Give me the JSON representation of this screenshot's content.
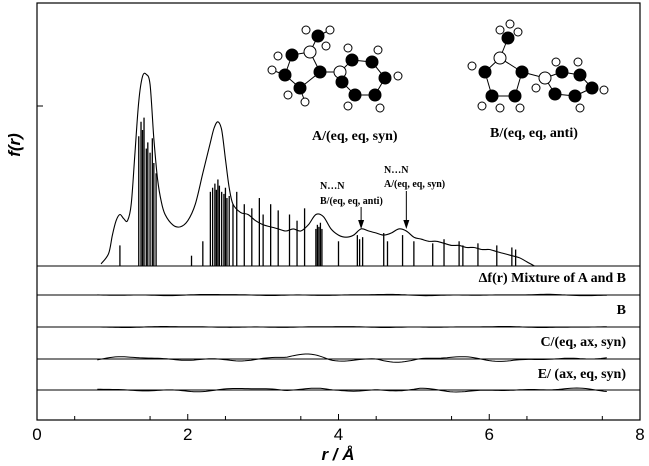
{
  "chart_data": {
    "type": "line",
    "xlabel": "r / Å",
    "ylabel": "f(r)",
    "xlim": [
      0,
      8
    ],
    "xticks": [
      "0",
      "2",
      "4",
      "6",
      "8"
    ],
    "grid": false,
    "main_curve": {
      "x": [
        0.85,
        0.95,
        1.0,
        1.05,
        1.1,
        1.15,
        1.2,
        1.25,
        1.3,
        1.35,
        1.4,
        1.45,
        1.5,
        1.55,
        1.6,
        1.65,
        1.7,
        1.8,
        1.9,
        2.0,
        2.1,
        2.2,
        2.3,
        2.35,
        2.4,
        2.45,
        2.5,
        2.55,
        2.6,
        2.7,
        2.8,
        2.9,
        3.0,
        3.1,
        3.2,
        3.3,
        3.4,
        3.5,
        3.6,
        3.7,
        3.8,
        3.9,
        4.0,
        4.1,
        4.2,
        4.3,
        4.4,
        4.5,
        4.6,
        4.7,
        4.8,
        4.9,
        5.0,
        5.1,
        5.2,
        5.3,
        5.4,
        5.5,
        5.6,
        5.7,
        5.8,
        5.9,
        6.0,
        6.1,
        6.2,
        6.3,
        6.4,
        6.5,
        6.6
      ],
      "y": [
        0.01,
        0.06,
        0.15,
        0.22,
        0.25,
        0.23,
        0.22,
        0.3,
        0.55,
        0.8,
        0.92,
        0.93,
        0.88,
        0.62,
        0.42,
        0.31,
        0.25,
        0.2,
        0.19,
        0.22,
        0.3,
        0.45,
        0.6,
        0.67,
        0.7,
        0.66,
        0.52,
        0.38,
        0.3,
        0.26,
        0.25,
        0.22,
        0.2,
        0.19,
        0.18,
        0.17,
        0.18,
        0.17,
        0.2,
        0.25,
        0.24,
        0.18,
        0.15,
        0.14,
        0.15,
        0.18,
        0.17,
        0.16,
        0.15,
        0.16,
        0.18,
        0.17,
        0.14,
        0.13,
        0.12,
        0.12,
        0.11,
        0.1,
        0.1,
        0.09,
        0.09,
        0.08,
        0.08,
        0.07,
        0.06,
        0.05,
        0.04,
        0.02,
        0.0
      ]
    },
    "distance_sticks": [
      {
        "r": 1.1,
        "h": 0.1
      },
      {
        "r": 1.35,
        "h": 0.63
      },
      {
        "r": 1.38,
        "h": 0.7
      },
      {
        "r": 1.4,
        "h": 0.66
      },
      {
        "r": 1.42,
        "h": 0.72
      },
      {
        "r": 1.45,
        "h": 0.57
      },
      {
        "r": 1.47,
        "h": 0.6
      },
      {
        "r": 1.5,
        "h": 0.55
      },
      {
        "r": 1.53,
        "h": 0.62
      },
      {
        "r": 1.55,
        "h": 0.5
      },
      {
        "r": 1.58,
        "h": 0.45
      },
      {
        "r": 2.05,
        "h": 0.05
      },
      {
        "r": 2.2,
        "h": 0.12
      },
      {
        "r": 2.3,
        "h": 0.36
      },
      {
        "r": 2.33,
        "h": 0.38
      },
      {
        "r": 2.36,
        "h": 0.4
      },
      {
        "r": 2.38,
        "h": 0.37
      },
      {
        "r": 2.4,
        "h": 0.42
      },
      {
        "r": 2.42,
        "h": 0.39
      },
      {
        "r": 2.45,
        "h": 0.36
      },
      {
        "r": 2.48,
        "h": 0.35
      },
      {
        "r": 2.5,
        "h": 0.38
      },
      {
        "r": 2.52,
        "h": 0.33
      },
      {
        "r": 2.55,
        "h": 0.34
      },
      {
        "r": 2.6,
        "h": 0.3
      },
      {
        "r": 2.65,
        "h": 0.36
      },
      {
        "r": 2.75,
        "h": 0.3
      },
      {
        "r": 2.85,
        "h": 0.28
      },
      {
        "r": 2.95,
        "h": 0.33
      },
      {
        "r": 3.0,
        "h": 0.25
      },
      {
        "r": 3.1,
        "h": 0.3
      },
      {
        "r": 3.2,
        "h": 0.27
      },
      {
        "r": 3.35,
        "h": 0.25
      },
      {
        "r": 3.45,
        "h": 0.22
      },
      {
        "r": 3.55,
        "h": 0.28
      },
      {
        "r": 3.7,
        "h": 0.18
      },
      {
        "r": 3.72,
        "h": 0.2
      },
      {
        "r": 3.74,
        "h": 0.19
      },
      {
        "r": 3.76,
        "h": 0.21
      },
      {
        "r": 3.78,
        "h": 0.18
      },
      {
        "r": 4.0,
        "h": 0.12
      },
      {
        "r": 4.25,
        "h": 0.15
      },
      {
        "r": 4.28,
        "h": 0.13
      },
      {
        "r": 4.32,
        "h": 0.14
      },
      {
        "r": 4.6,
        "h": 0.16
      },
      {
        "r": 4.65,
        "h": 0.12
      },
      {
        "r": 4.85,
        "h": 0.15
      },
      {
        "r": 5.0,
        "h": 0.12
      },
      {
        "r": 5.25,
        "h": 0.11
      },
      {
        "r": 5.4,
        "h": 0.13
      },
      {
        "r": 5.6,
        "h": 0.12
      },
      {
        "r": 5.65,
        "h": 0.1
      },
      {
        "r": 5.85,
        "h": 0.11
      },
      {
        "r": 6.1,
        "h": 0.1
      },
      {
        "r": 6.3,
        "h": 0.09
      },
      {
        "r": 6.35,
        "h": 0.08
      }
    ],
    "annotations": {
      "a_label": "A/(eq, eq, syn)",
      "b_label": "B/(eq, eq, anti)",
      "nn_b_top": "N…N",
      "nn_b_bottom": "B/(eq,   eq,   anti)",
      "nn_a_top": "N…N",
      "nn_a_bottom": "A/(eq,   eq,   syn)",
      "nn_b_r": 4.3,
      "nn_a_r": 4.9
    },
    "difference_curves": [
      {
        "label": "Δf(r)   Mixture of A and B",
        "amplitude": 0.25
      },
      {
        "label": "B",
        "amplitude": 0.2
      },
      {
        "label": "C/(eq, ax, syn)",
        "amplitude": 0.9
      },
      {
        "label": "E/ (ax, eq, syn)",
        "amplitude": 0.75
      }
    ]
  }
}
